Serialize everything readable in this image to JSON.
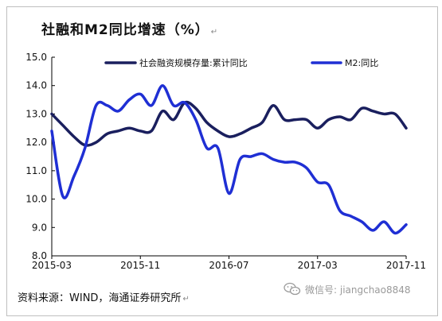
{
  "title": "社融和M2同比增速（%）",
  "source": "资料来源：WIND，海通证券研究所",
  "watermark": {
    "text": "微信号: jiangchao8848",
    "icon": "wechat-icon"
  },
  "colors": {
    "series1": "#1a1f5e",
    "series2": "#1f2fd4",
    "axis": "#000000"
  },
  "chart_data": {
    "type": "line",
    "ylim": [
      8.0,
      15.0
    ],
    "y_ticks": [
      "15.0",
      "14.0",
      "13.0",
      "12.0",
      "11.0",
      "10.0",
      "9.0",
      "8.0"
    ],
    "x_ticks": [
      "2015-03",
      "2015-11",
      "2016-07",
      "2017-03",
      "2017-11"
    ],
    "x": [
      "2015-03",
      "2015-04",
      "2015-05",
      "2015-06",
      "2015-07",
      "2015-08",
      "2015-09",
      "2015-10",
      "2015-11",
      "2015-12",
      "2016-01",
      "2016-02",
      "2016-03",
      "2016-04",
      "2016-05",
      "2016-06",
      "2016-07",
      "2016-08",
      "2016-09",
      "2016-10",
      "2016-11",
      "2016-12",
      "2017-01",
      "2017-02",
      "2017-03",
      "2017-04",
      "2017-05",
      "2017-06",
      "2017-07",
      "2017-08",
      "2017-09",
      "2017-10",
      "2017-11"
    ],
    "legend_position": "top",
    "series": [
      {
        "name": "社会融资规模存量:累计同比",
        "values": [
          13.0,
          12.6,
          12.2,
          11.9,
          12.0,
          12.3,
          12.4,
          12.5,
          12.4,
          12.4,
          13.1,
          12.8,
          13.4,
          13.2,
          12.7,
          12.4,
          12.2,
          12.3,
          12.5,
          12.7,
          13.3,
          12.8,
          12.8,
          12.8,
          12.5,
          12.8,
          12.9,
          12.8,
          13.2,
          13.1,
          13.0,
          13.0,
          12.5
        ]
      },
      {
        "name": "M2:同比",
        "values": [
          12.4,
          10.1,
          10.8,
          11.8,
          13.3,
          13.3,
          13.1,
          13.5,
          13.7,
          13.3,
          14.0,
          13.3,
          13.4,
          12.8,
          11.8,
          11.8,
          10.2,
          11.4,
          11.5,
          11.6,
          11.4,
          11.3,
          11.3,
          11.1,
          10.6,
          10.5,
          9.6,
          9.4,
          9.2,
          8.9,
          9.2,
          8.8,
          9.1
        ]
      }
    ]
  }
}
